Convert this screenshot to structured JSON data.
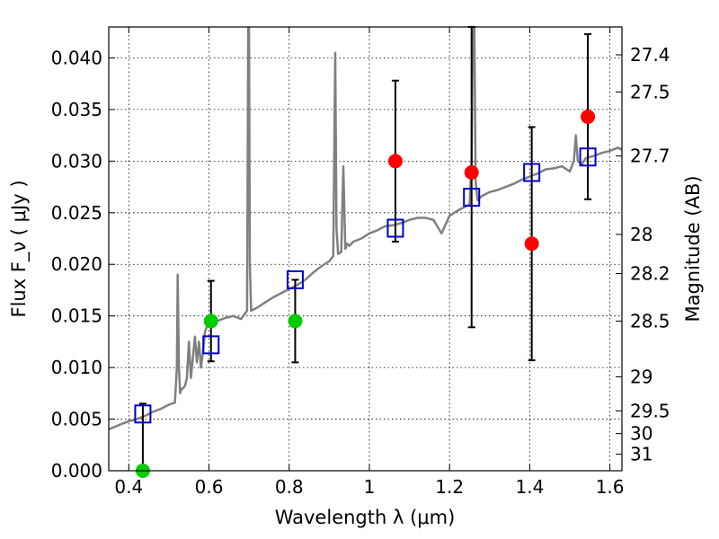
{
  "chart_data": {
    "type": "scatter",
    "xlabel": "Wavelength  λ (μm)",
    "ylabel": "Flux  F_ν  ( μJy )",
    "ylabel_right": "Magnitude (AB)",
    "xlim": [
      0.35,
      1.63
    ],
    "ylim": [
      0.0,
      0.043
    ],
    "grid": true,
    "legend": "none",
    "x_ticks": [
      {
        "value": 0.4,
        "label": "0.4"
      },
      {
        "value": 0.6,
        "label": "0.6"
      },
      {
        "value": 0.8,
        "label": "0.8"
      },
      {
        "value": 1.0,
        "label": "1"
      },
      {
        "value": 1.2,
        "label": "1.2"
      },
      {
        "value": 1.4,
        "label": "1.4"
      },
      {
        "value": 1.6,
        "label": "1.6"
      }
    ],
    "y_ticks": [
      {
        "value": 0.0,
        "label": "0.000"
      },
      {
        "value": 0.005,
        "label": "0.005"
      },
      {
        "value": 0.01,
        "label": "0.010"
      },
      {
        "value": 0.015,
        "label": "0.015"
      },
      {
        "value": 0.02,
        "label": "0.020"
      },
      {
        "value": 0.025,
        "label": "0.025"
      },
      {
        "value": 0.03,
        "label": "0.030"
      },
      {
        "value": 0.035,
        "label": "0.035"
      },
      {
        "value": 0.04,
        "label": "0.040"
      }
    ],
    "right_ticks": [
      {
        "flux": 0.0403,
        "label": "27.4"
      },
      {
        "flux": 0.0367,
        "label": "27.5"
      },
      {
        "flux": 0.0305,
        "label": "27.7"
      },
      {
        "flux": 0.0229,
        "label": "28"
      },
      {
        "flux": 0.0191,
        "label": "28.2"
      },
      {
        "flux": 0.0145,
        "label": "28.5"
      },
      {
        "flux": 0.0091,
        "label": "29"
      },
      {
        "flux": 0.0058,
        "label": "29.5"
      },
      {
        "flux": 0.0036,
        "label": "30"
      },
      {
        "flux": 0.0016,
        "label": "31"
      }
    ],
    "series": [
      {
        "kind": "spectrum",
        "color": "#808080",
        "x": [
          0.35,
          0.38,
          0.4,
          0.42,
          0.44,
          0.46,
          0.48,
          0.5,
          0.515,
          0.52,
          0.522,
          0.525,
          0.528,
          0.53,
          0.54,
          0.545,
          0.55,
          0.555,
          0.56,
          0.565,
          0.57,
          0.575,
          0.58,
          0.585,
          0.59,
          0.6,
          0.62,
          0.64,
          0.66,
          0.68,
          0.695,
          0.698,
          0.7,
          0.702,
          0.705,
          0.72,
          0.74,
          0.76,
          0.78,
          0.8,
          0.82,
          0.84,
          0.86,
          0.88,
          0.9,
          0.91,
          0.915,
          0.918,
          0.922,
          0.93,
          0.935,
          0.94,
          0.945,
          0.95,
          0.96,
          0.98,
          1.0,
          1.02,
          1.04,
          1.06,
          1.08,
          1.1,
          1.12,
          1.14,
          1.16,
          1.18,
          1.2,
          1.22,
          1.24,
          1.25,
          1.255,
          1.258,
          1.26,
          1.262,
          1.265,
          1.27,
          1.28,
          1.3,
          1.32,
          1.34,
          1.36,
          1.38,
          1.4,
          1.42,
          1.44,
          1.46,
          1.48,
          1.5,
          1.51,
          1.515,
          1.52,
          1.53,
          1.54,
          1.56,
          1.58,
          1.6,
          1.62,
          1.63
        ],
        "y": [
          0.004,
          0.0045,
          0.0048,
          0.005,
          0.0053,
          0.0057,
          0.006,
          0.0064,
          0.0066,
          0.01,
          0.019,
          0.01,
          0.0075,
          0.0078,
          0.0082,
          0.009,
          0.0125,
          0.009,
          0.011,
          0.013,
          0.0105,
          0.0125,
          0.01,
          0.0115,
          0.0135,
          0.0145,
          0.0145,
          0.0148,
          0.015,
          0.0147,
          0.0155,
          0.043,
          0.043,
          0.02,
          0.0155,
          0.0158,
          0.0163,
          0.0168,
          0.0172,
          0.0176,
          0.018,
          0.0185,
          0.0192,
          0.0198,
          0.0203,
          0.0208,
          0.0405,
          0.0235,
          0.021,
          0.0212,
          0.0295,
          0.0215,
          0.022,
          0.0218,
          0.0222,
          0.0225,
          0.023,
          0.0233,
          0.0237,
          0.0238,
          0.024,
          0.0243,
          0.0245,
          0.0245,
          0.0243,
          0.023,
          0.0247,
          0.0252,
          0.0256,
          0.0258,
          0.03,
          0.043,
          0.043,
          0.043,
          0.028,
          0.0262,
          0.0266,
          0.027,
          0.0272,
          0.0275,
          0.0278,
          0.0282,
          0.0285,
          0.0288,
          0.0292,
          0.0293,
          0.0295,
          0.029,
          0.03,
          0.0325,
          0.03,
          0.0297,
          0.0303,
          0.0305,
          0.0308,
          0.031,
          0.0313,
          0.0311
        ]
      },
      {
        "kind": "model-points",
        "marker": "open-square",
        "color": "#0000cc",
        "x": [
          0.435,
          0.605,
          0.815,
          1.065,
          1.255,
          1.405,
          1.545
        ],
        "y": [
          0.0055,
          0.0122,
          0.0185,
          0.0235,
          0.0265,
          0.0289,
          0.0304
        ]
      },
      {
        "kind": "observed",
        "marker": "filled-circle",
        "color": "#00cc00",
        "x": [
          0.435,
          0.605,
          0.815
        ],
        "y": [
          0.0,
          0.0145,
          0.0145
        ],
        "yerr": [
          0.0065,
          0.0039,
          0.004
        ]
      },
      {
        "kind": "observed",
        "marker": "filled-circle",
        "color": "#ff0000",
        "x": [
          1.065,
          1.255,
          1.405,
          1.545
        ],
        "y": [
          0.03,
          0.0289,
          0.022,
          0.0343
        ],
        "yerr": [
          0.0078,
          0.015,
          0.0113,
          0.008
        ]
      }
    ]
  }
}
